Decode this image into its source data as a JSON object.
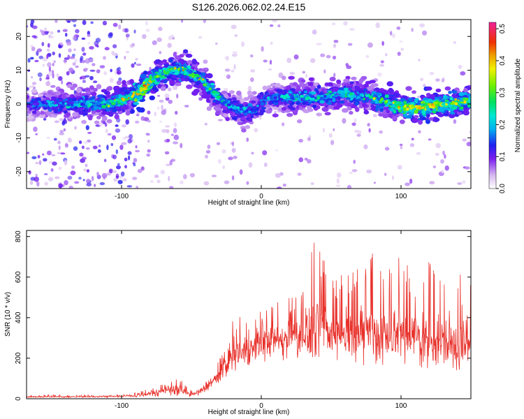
{
  "title": "S126.2026.062.02.24.E15",
  "chart_data": [
    {
      "type": "heatmap",
      "xlabel": "Height of straight line (km)",
      "ylabel": "Frequency (Hz)",
      "xlim": [
        -168,
        150
      ],
      "ylim": [
        -25,
        25
      ],
      "x_ticks": [
        -100,
        0,
        100
      ],
      "y_ticks": [
        -20,
        -10,
        0,
        10,
        20
      ],
      "colorbar": {
        "label": "Normalized spectral amplitude",
        "range": [
          0,
          0.52
        ],
        "ticks": [
          0.0,
          0.1,
          0.2,
          0.3,
          0.4,
          0.5
        ],
        "tick_labels": [
          "0.0",
          "0.1",
          "0.2",
          "0.3",
          "0.4",
          "0.5"
        ]
      },
      "ridge": [
        {
          "x": -168,
          "y": 0,
          "amplitude": 0.15
        },
        {
          "x": -140,
          "y": 0,
          "amplitude": 0.2
        },
        {
          "x": -110,
          "y": 0,
          "amplitude": 0.25
        },
        {
          "x": -95,
          "y": 2,
          "amplitude": 0.3
        },
        {
          "x": -85,
          "y": 4,
          "amplitude": 0.4
        },
        {
          "x": -75,
          "y": 8,
          "amplitude": 0.3
        },
        {
          "x": -65,
          "y": 10,
          "amplitude": 0.25
        },
        {
          "x": -55,
          "y": 10,
          "amplitude": 0.28
        },
        {
          "x": -45,
          "y": 8,
          "amplitude": 0.26
        },
        {
          "x": -35,
          "y": 4,
          "amplitude": 0.25
        },
        {
          "x": -25,
          "y": 0,
          "amplitude": 0.22
        },
        {
          "x": -15,
          "y": -2,
          "amplitude": 0.2
        },
        {
          "x": -5,
          "y": -2,
          "amplitude": 0.18
        },
        {
          "x": 5,
          "y": 2,
          "amplitude": 0.2
        },
        {
          "x": 20,
          "y": 2,
          "amplitude": 0.22
        },
        {
          "x": 40,
          "y": 2,
          "amplitude": 0.22
        },
        {
          "x": 60,
          "y": 3,
          "amplitude": 0.24
        },
        {
          "x": 80,
          "y": 2,
          "amplitude": 0.25
        },
        {
          "x": 100,
          "y": -1,
          "amplitude": 0.3
        },
        {
          "x": 115,
          "y": -1,
          "amplitude": 0.38
        },
        {
          "x": 130,
          "y": 0,
          "amplitude": 0.32
        },
        {
          "x": 150,
          "y": 1,
          "amplitude": 0.28
        }
      ]
    },
    {
      "type": "line",
      "xlabel": "Height of straight line (km)",
      "ylabel": "SNR (10 * v/v)",
      "xlim": [
        -168,
        150
      ],
      "ylim": [
        0,
        830
      ],
      "x_ticks": [
        -100,
        0,
        100
      ],
      "y_ticks": [
        0,
        200,
        400,
        600,
        800
      ],
      "color": "#e8302a",
      "envelope": {
        "x": [
          -168,
          -140,
          -110,
          -90,
          -75,
          -65,
          -58,
          -50,
          -40,
          -30,
          -20,
          -10,
          0,
          10,
          20,
          30,
          40,
          50,
          60,
          70,
          80,
          90,
          100,
          110,
          120,
          130,
          140,
          150
        ],
        "low": [
          5,
          5,
          5,
          5,
          10,
          15,
          10,
          5,
          20,
          60,
          120,
          130,
          150,
          180,
          180,
          200,
          200,
          180,
          160,
          150,
          160,
          150,
          160,
          150,
          140,
          130,
          120,
          110
        ],
        "high": [
          20,
          20,
          20,
          30,
          60,
          90,
          100,
          40,
          90,
          200,
          400,
          430,
          450,
          480,
          500,
          620,
          820,
          650,
          600,
          650,
          730,
          700,
          720,
          640,
          700,
          660,
          680,
          650
        ],
        "mean": [
          10,
          10,
          12,
          15,
          30,
          50,
          45,
          20,
          50,
          120,
          220,
          250,
          270,
          300,
          310,
          330,
          360,
          330,
          320,
          330,
          340,
          320,
          330,
          310,
          300,
          290,
          280,
          270
        ]
      }
    }
  ]
}
